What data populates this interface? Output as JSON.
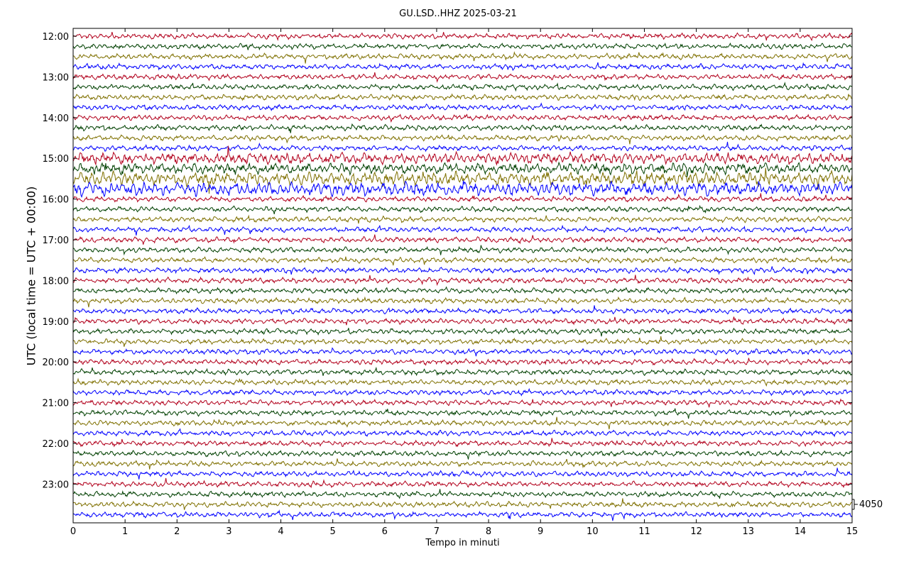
{
  "chart_data": {
    "type": "line",
    "title": "GU.LSD..HHZ 2025-03-21",
    "xlabel": "Tempo in minuti",
    "ylabel": "UTC (local time = UTC + 00:00)",
    "xlim": [
      0,
      15
    ],
    "x_ticks": [
      "0",
      "1",
      "2",
      "3",
      "4",
      "5",
      "6",
      "7",
      "8",
      "9",
      "10",
      "11",
      "12",
      "13",
      "14",
      "15"
    ],
    "y_ticks": [
      "12:00",
      "13:00",
      "14:00",
      "15:00",
      "16:00",
      "17:00",
      "18:00",
      "19:00",
      "20:00",
      "21:00",
      "22:00",
      "23:00"
    ],
    "trace_interval_minutes": 15,
    "trace_count": 48,
    "trace_colors": [
      "#b2001c",
      "#004000",
      "#7f7000",
      "#0000ff"
    ],
    "scale_bar_label": "4050",
    "grid": false,
    "legend": "none"
  }
}
